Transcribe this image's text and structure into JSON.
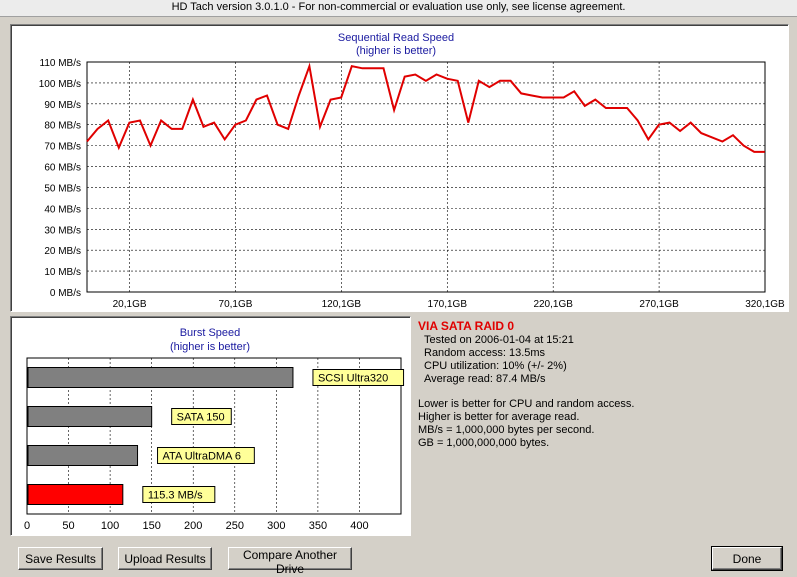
{
  "window": {
    "title": "HD Tach version 3.0.1.0  - For non-commercial or evaluation use only, see license agreement."
  },
  "sequential": {
    "title": "Sequential Read Speed",
    "subtitle": "(higher is better)"
  },
  "burst": {
    "title": "Burst Speed",
    "subtitle": "(higher is better)"
  },
  "info": {
    "drive_name": "VIA SATA RAID 0",
    "tested_on": "Tested on 2006-01-04 at 15:21",
    "random_access": "Random access: 13.5ms",
    "cpu": "CPU utilization: 10% (+/- 2%)",
    "average_read": "Average read: 87.4 MB/s",
    "note1": "Lower is better for CPU and random access.",
    "note2": "Higher is better for average read.",
    "note3": "MB/s = 1,000,000 bytes per second.",
    "note4": "GB = 1,000,000,000 bytes."
  },
  "buttons": {
    "save": "Save Results",
    "upload": "Upload Results",
    "compare": "Compare Another Drive",
    "done": "Done"
  },
  "colors": {
    "line": "#e00000",
    "bar_gray": "#808080",
    "bar_red": "#ff0000",
    "label_bg": "#ffff99"
  },
  "chart_data": [
    {
      "type": "line",
      "title": "Sequential Read Speed",
      "subtitle": "(higher is better)",
      "xlim": [
        0,
        320.1
      ],
      "ylim": [
        0,
        110
      ],
      "grid": true,
      "y_ticks": [
        "0 MB/s",
        "10 MB/s",
        "20 MB/s",
        "30 MB/s",
        "40 MB/s",
        "50 MB/s",
        "60 MB/s",
        "70 MB/s",
        "80 MB/s",
        "90 MB/s",
        "100 MB/s",
        "110 MB/s"
      ],
      "x_ticks": [
        "20,1GB",
        "70,1GB",
        "120,1GB",
        "170,1GB",
        "220,1GB",
        "270,1GB",
        "320,1GB"
      ],
      "x_tick_values": [
        20.1,
        70.1,
        120.1,
        170.1,
        220.1,
        270.1,
        320.1
      ],
      "x": [
        0,
        5,
        10,
        15,
        20,
        25,
        30,
        35,
        40,
        45,
        50,
        55,
        60,
        65,
        70,
        75,
        80,
        85,
        90,
        95,
        100,
        105,
        110,
        115,
        120,
        125,
        130,
        135,
        140,
        145,
        150,
        155,
        160,
        165,
        170,
        175,
        180,
        185,
        190,
        195,
        200,
        205,
        210,
        215,
        220,
        225,
        230,
        235,
        240,
        245,
        250,
        255,
        260,
        265,
        270,
        275,
        280,
        285,
        290,
        295,
        300,
        305,
        310,
        315,
        320
      ],
      "y": [
        72,
        78,
        82,
        69,
        81,
        82,
        70,
        82,
        78,
        78,
        92,
        79,
        81,
        73,
        80,
        82,
        92,
        94,
        80,
        78,
        94,
        108,
        79,
        92,
        93,
        108,
        107,
        107,
        107,
        87,
        103,
        104,
        101,
        104,
        102,
        101,
        81,
        101,
        98,
        101,
        101,
        95,
        94,
        93,
        93,
        93,
        96,
        89,
        92,
        88,
        88,
        88,
        82,
        73,
        80,
        81,
        77,
        81,
        76,
        74,
        72,
        75,
        70,
        67,
        67
      ]
    },
    {
      "type": "bar",
      "orientation": "horizontal",
      "title": "Burst Speed",
      "subtitle": "(higher is better)",
      "xlim": [
        0,
        450
      ],
      "x_ticks": [
        "0",
        "50",
        "100",
        "150",
        "200",
        "250",
        "300",
        "350",
        "400"
      ],
      "categories": [
        "SCSI Ultra320",
        "SATA 150",
        "ATA UltraDMA 6",
        "115.3 MB/s"
      ],
      "values": [
        320,
        150,
        133,
        115.3
      ],
      "highlight_index": 3
    }
  ]
}
